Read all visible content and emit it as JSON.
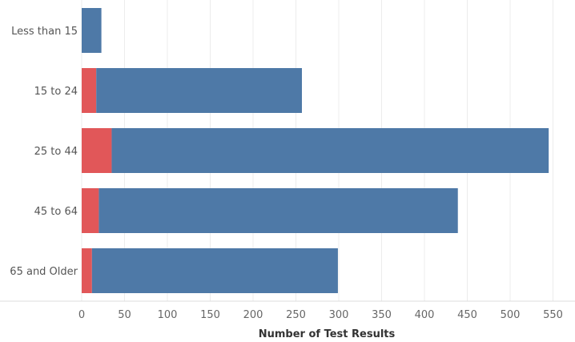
{
  "chart_data": {
    "type": "bar",
    "orientation": "horizontal",
    "stacked": true,
    "xlabel": "Number of Test Results",
    "ylabel": "",
    "xlim": [
      0,
      560
    ],
    "xticks": [
      0,
      50,
      100,
      150,
      200,
      250,
      300,
      350,
      400,
      450,
      500,
      550
    ],
    "categories": [
      "Less than 15",
      "15 to 24",
      "25 to 44",
      "45 to 64",
      "65 and Older"
    ],
    "series": [
      {
        "color": "#e15759",
        "values": [
          0,
          17,
          35,
          20,
          12
        ]
      },
      {
        "color": "#4e79a7",
        "values": [
          23,
          240,
          510,
          419,
          287
        ]
      }
    ],
    "grid": true,
    "legend": "none"
  }
}
